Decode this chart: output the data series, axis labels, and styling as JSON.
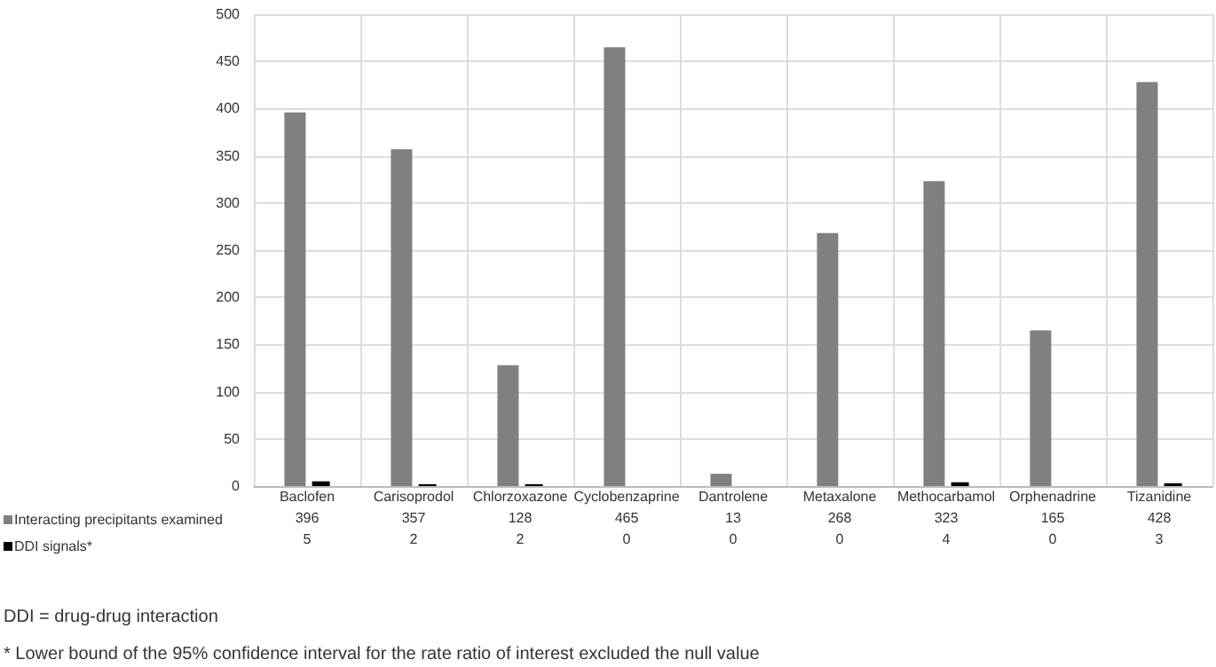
{
  "chart_data": {
    "type": "bar",
    "categories": [
      "Baclofen",
      "Carisoprodol",
      "Chlorzoxazone",
      "Cyclobenzaprine",
      "Dantrolene",
      "Metaxalone",
      "Methocarbamol",
      "Orphenadrine",
      "Tizanidine"
    ],
    "series": [
      {
        "name": "Interacting precipitants examined",
        "color": "#808080",
        "values": [
          396,
          357,
          128,
          465,
          13,
          268,
          323,
          165,
          428
        ]
      },
      {
        "name": "DDI signals*",
        "color": "#000000",
        "values": [
          5,
          2,
          2,
          0,
          0,
          0,
          4,
          0,
          3
        ]
      }
    ],
    "ylim": [
      0,
      500
    ],
    "yticks": [
      0,
      50,
      100,
      150,
      200,
      250,
      300,
      350,
      400,
      450,
      500
    ],
    "grid": true,
    "legend": "bottom",
    "data_labels": true,
    "annotations": [
      "DDI = drug-drug interaction",
      "* Lower bound of the 95% confidence interval for the rate ratio of interest excluded the null value"
    ]
  }
}
